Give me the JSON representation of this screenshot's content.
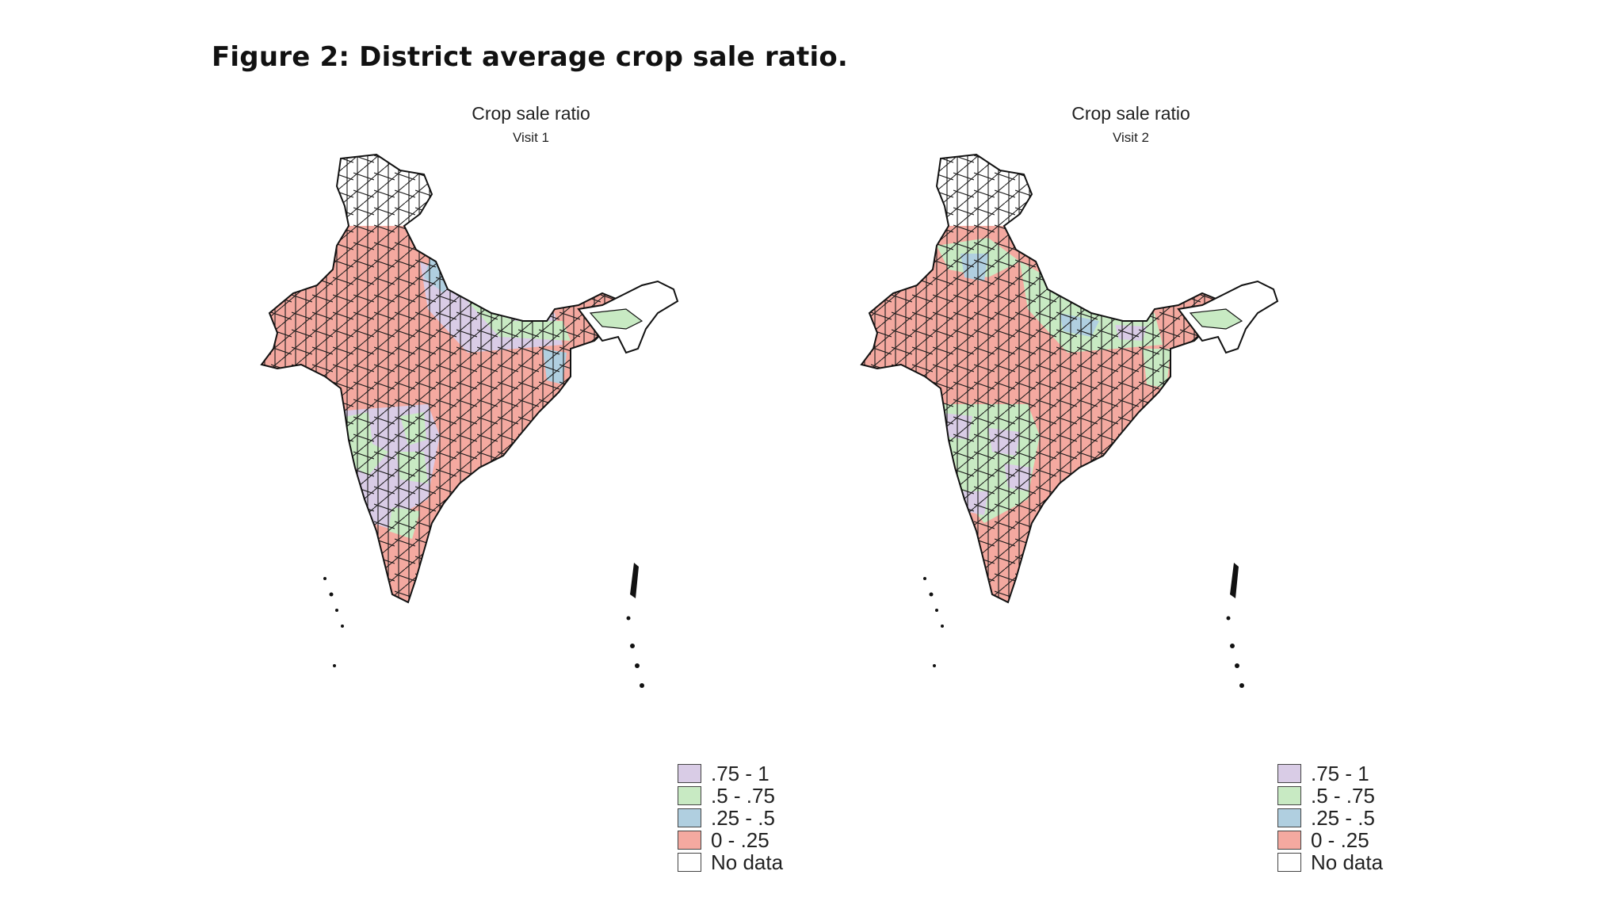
{
  "figure": {
    "title": "Figure 2: District average crop sale ratio."
  },
  "maps": [
    {
      "title": "Crop sale ratio",
      "subtitle": "Visit 1"
    },
    {
      "title": "Crop sale ratio",
      "subtitle": "Visit 2"
    }
  ],
  "legend": [
    {
      "label": ".75 - 1",
      "color": "#d9cce6"
    },
    {
      "label": ".5 - .75",
      "color": "#c8eac3"
    },
    {
      "label": ".25 - .5",
      "color": "#b0cfe0"
    },
    {
      "label": "0 - .25",
      "color": "#f4a9a0"
    },
    {
      "label": "No data",
      "color": "#ffffff"
    }
  ],
  "chart_data": {
    "type": "choropleth",
    "region": "India districts",
    "variable": "Crop sale ratio",
    "bins": [
      ".75 - 1",
      ".5 - .75",
      ".25 - .5",
      "0 - .25",
      "No data"
    ],
    "panels": [
      "Visit 1",
      "Visit 2"
    ]
  }
}
